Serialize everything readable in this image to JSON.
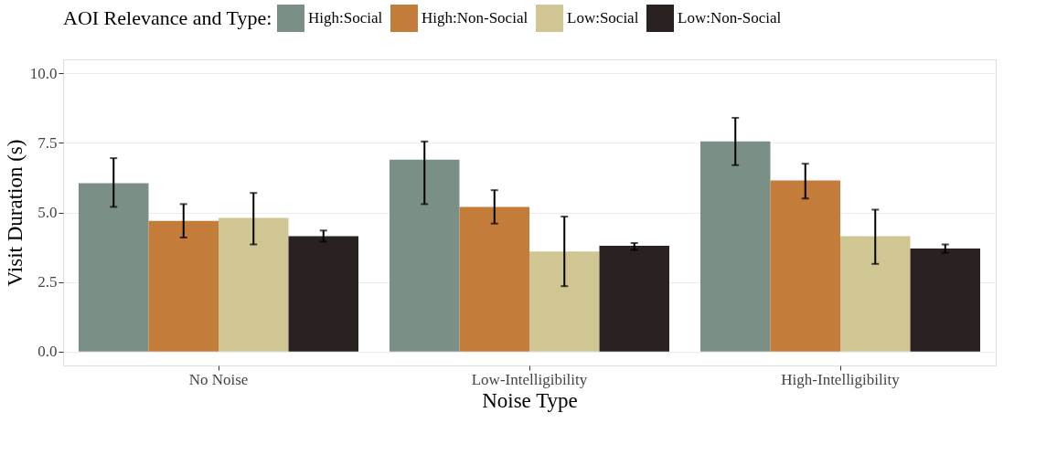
{
  "chart_data": {
    "type": "bar",
    "xlabel": "Noise Type",
    "ylabel": "Visit Duration (s)",
    "legend_title": "AOI Relevance and Type:",
    "legend": "top",
    "categories": [
      "No Noise",
      "Low-Intelligibility",
      "High-Intelligibility"
    ],
    "ylim": [
      -0.5,
      10.5
    ],
    "yticks": [
      {
        "value": 0,
        "label": "0.0"
      },
      {
        "value": 2.5,
        "label": "2.5"
      },
      {
        "value": 5,
        "label": "5.0"
      },
      {
        "value": 7.5,
        "label": "7.5"
      },
      {
        "value": 10,
        "label": "10.0"
      }
    ],
    "grid": "y",
    "series": [
      {
        "name": "High:Social",
        "color": "#7a9087",
        "values": [
          6.05,
          6.9,
          7.55
        ],
        "errors": [
          [
            5.2,
            6.95
          ],
          [
            5.3,
            7.55
          ],
          [
            6.7,
            8.4
          ]
        ]
      },
      {
        "name": "High:Non-Social",
        "color": "#c47c3a",
        "values": [
          4.7,
          5.2,
          6.15
        ],
        "errors": [
          [
            4.1,
            5.3
          ],
          [
            4.6,
            5.8
          ],
          [
            5.5,
            6.75
          ]
        ]
      },
      {
        "name": "Low:Social",
        "color": "#cfc693",
        "values": [
          4.8,
          3.6,
          4.15
        ],
        "errors": [
          [
            3.85,
            5.7
          ],
          [
            2.35,
            4.85
          ],
          [
            3.15,
            5.1
          ]
        ]
      },
      {
        "name": "Low:Non-Social",
        "color": "#2a2220",
        "values": [
          4.15,
          3.8,
          3.7
        ],
        "errors": [
          [
            3.95,
            4.35
          ],
          [
            3.65,
            3.9
          ],
          [
            3.55,
            3.85
          ]
        ]
      }
    ]
  }
}
